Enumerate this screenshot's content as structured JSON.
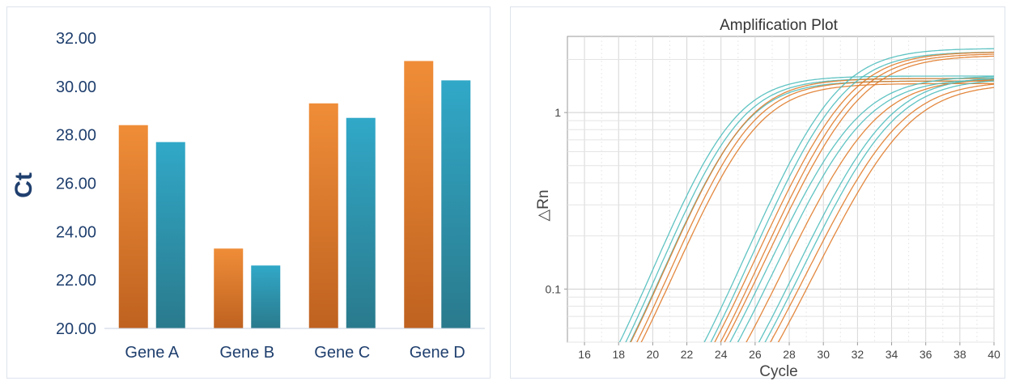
{
  "chart_data": [
    {
      "type": "bar",
      "title": "",
      "ylabel": "Ct",
      "xlabel": "",
      "categories": [
        "Gene A",
        "Gene B",
        "Gene C",
        "Gene D"
      ],
      "series": [
        {
          "color": "#e07b2a",
          "values": [
            28.4,
            23.3,
            29.3,
            31.05
          ]
        },
        {
          "color": "#2a9db8",
          "values": [
            27.7,
            22.6,
            28.7,
            30.25
          ]
        }
      ],
      "ylim": [
        20,
        32
      ],
      "yticks": [
        "20.00",
        "22.00",
        "24.00",
        "26.00",
        "28.00",
        "30.00",
        "32.00"
      ],
      "grid": false
    },
    {
      "type": "line",
      "title": "Amplification Plot",
      "xlabel": "Cycle",
      "ylabel": "△Rn",
      "yscale": "log",
      "xlim": [
        15,
        40
      ],
      "ylim": [
        0.05,
        2.7
      ],
      "xticks": [
        "16",
        "18",
        "20",
        "22",
        "24",
        "26",
        "28",
        "30",
        "32",
        "34",
        "36",
        "38",
        "40"
      ],
      "yticks": [
        {
          "value": 1,
          "label": "1"
        },
        {
          "value": 0.1,
          "label": "0.1"
        }
      ],
      "grid": true,
      "curve_model": {
        "baseline": 0.01,
        "form": "baseline + plateau / (1 + 2^((midpoint - cycle)/steepness))"
      },
      "curves": [
        {
          "color": "#4fbcbc",
          "midpoint": 24.3,
          "plateau": 1.6,
          "steepness": 1.18
        },
        {
          "color": "#4fbcbc",
          "midpoint": 24.6,
          "plateau": 1.55,
          "steepness": 1.18
        },
        {
          "color": "#4fbcbc",
          "midpoint": 24.9,
          "plateau": 1.5,
          "steepness": 1.2
        },
        {
          "color": "#e07b2a",
          "midpoint": 25.0,
          "plateau": 1.55,
          "steepness": 1.2
        },
        {
          "color": "#e07b2a",
          "midpoint": 25.3,
          "plateau": 1.5,
          "steepness": 1.2
        },
        {
          "color": "#e07b2a",
          "midpoint": 25.6,
          "plateau": 1.45,
          "steepness": 1.22
        },
        {
          "color": "#4fbcbc",
          "midpoint": 30.3,
          "plateau": 2.3,
          "steepness": 1.25
        },
        {
          "color": "#4fbcbc",
          "midpoint": 30.6,
          "plateau": 2.2,
          "steepness": 1.25
        },
        {
          "color": "#e07b2a",
          "midpoint": 31.0,
          "plateau": 2.2,
          "steepness": 1.28
        },
        {
          "color": "#e07b2a",
          "midpoint": 31.3,
          "plateau": 2.15,
          "steepness": 1.28
        },
        {
          "color": "#e07b2a",
          "midpoint": 31.6,
          "plateau": 2.1,
          "steepness": 1.3
        },
        {
          "color": "#4fbcbc",
          "midpoint": 31.4,
          "plateau": 1.6,
          "steepness": 1.3
        },
        {
          "color": "#4fbcbc",
          "midpoint": 31.8,
          "plateau": 1.55,
          "steepness": 1.3
        },
        {
          "color": "#e07b2a",
          "midpoint": 32.4,
          "plateau": 1.55,
          "steepness": 1.32
        },
        {
          "color": "#4fbcbc",
          "midpoint": 33.2,
          "plateau": 1.6,
          "steepness": 1.32
        },
        {
          "color": "#4fbcbc",
          "midpoint": 33.5,
          "plateau": 1.55,
          "steepness": 1.32
        },
        {
          "color": "#e07b2a",
          "midpoint": 33.9,
          "plateau": 1.5,
          "steepness": 1.35
        },
        {
          "color": "#e07b2a",
          "midpoint": 34.3,
          "plateau": 1.45,
          "steepness": 1.35
        }
      ]
    }
  ]
}
